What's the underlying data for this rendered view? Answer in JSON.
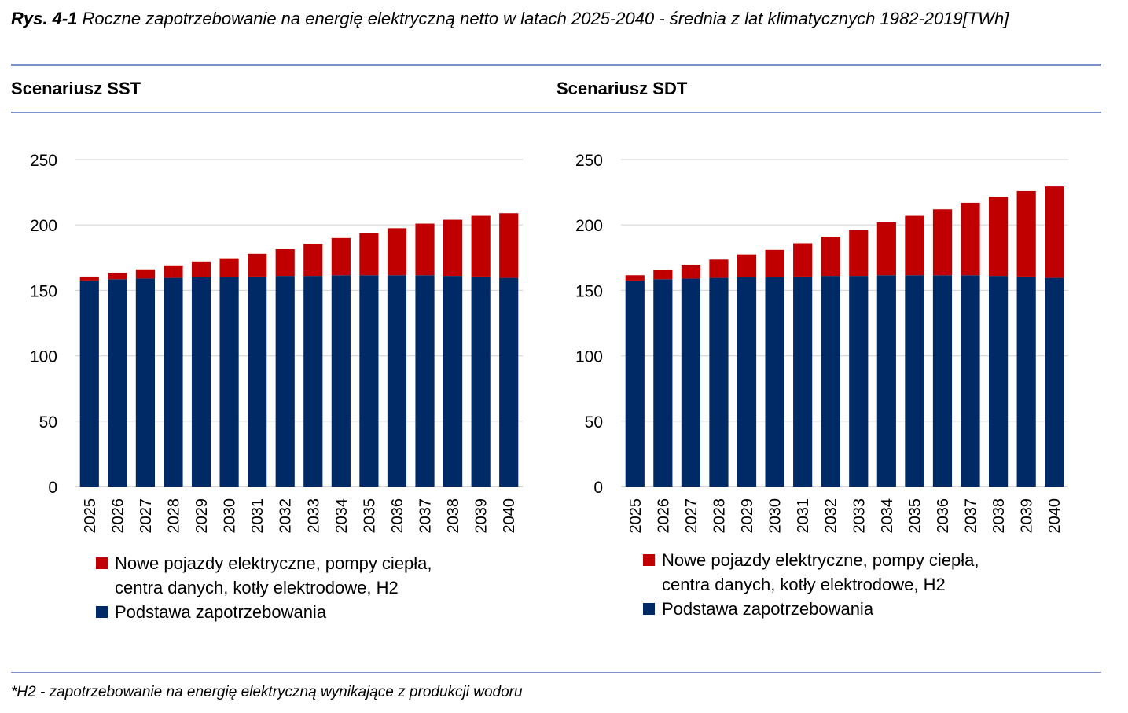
{
  "caption": {
    "label": "Rys. 4-1",
    "text": "Roczne zapotrzebowanie na energię elektryczną netto w latach 2025-2040 - średnia z lat klimatycznych 1982-2019[TWh]"
  },
  "colors": {
    "base": "#002a66",
    "new": "#c00000",
    "grid": "#d9d9d9",
    "rule": "#8090c8"
  },
  "footnote": "*H2 - zapotrzebowanie na energię elektryczną wynikające z produkcji wodoru",
  "chart_data": [
    {
      "type": "bar",
      "stacked": true,
      "title": "Scenariusz SST",
      "categories": [
        "2025",
        "2026",
        "2027",
        "2028",
        "2029",
        "2030",
        "2031",
        "2032",
        "2033",
        "2034",
        "2035",
        "2036",
        "2037",
        "2038",
        "2039",
        "2040"
      ],
      "ylim": [
        0,
        250
      ],
      "yticks": [
        0,
        50,
        100,
        150,
        200,
        250
      ],
      "grid": true,
      "legend_position": "bottom-left",
      "series": [
        {
          "name": "Podstawa zapotrzebowania",
          "color": "#002a66",
          "values": [
            157.5,
            158.5,
            159,
            159.5,
            160,
            160,
            160.5,
            161,
            161,
            161.5,
            161.5,
            161.5,
            161.5,
            161,
            160.5,
            159.5
          ]
        },
        {
          "name": "Nowe pojazdy elektryczne, pompy ciepła,",
          "name_line2": "centra danych, kotły elektrodowe, H2",
          "color": "#c00000",
          "values": [
            3,
            5,
            7,
            9.5,
            12,
            14.5,
            17.5,
            20.5,
            24.5,
            28.5,
            32.5,
            36,
            39.5,
            43,
            46.5,
            49.5
          ]
        }
      ]
    },
    {
      "type": "bar",
      "stacked": true,
      "title": "Scenariusz SDT",
      "categories": [
        "2025",
        "2026",
        "2027",
        "2028",
        "2029",
        "2030",
        "2031",
        "2032",
        "2033",
        "2034",
        "2035",
        "2036",
        "2037",
        "2038",
        "2039",
        "2040"
      ],
      "ylim": [
        0,
        250
      ],
      "yticks": [
        0,
        50,
        100,
        150,
        200,
        250
      ],
      "grid": true,
      "legend_position": "bottom-left",
      "series": [
        {
          "name": "Podstawa zapotrzebowania",
          "color": "#002a66",
          "values": [
            157.5,
            158.5,
            159,
            159.5,
            160,
            160,
            160.5,
            161,
            161,
            161.5,
            161.5,
            161.5,
            161.5,
            161,
            160.5,
            159.5
          ]
        },
        {
          "name": "Nowe pojazdy elektryczne, pompy ciepła,",
          "name_line2": "centra danych, kotły elektrodowe, H2",
          "color": "#c00000",
          "values": [
            4,
            7,
            10.5,
            14,
            17.5,
            21,
            25.5,
            30,
            35,
            40.5,
            45.5,
            50.5,
            55.5,
            60.5,
            65.5,
            70
          ]
        }
      ]
    }
  ]
}
